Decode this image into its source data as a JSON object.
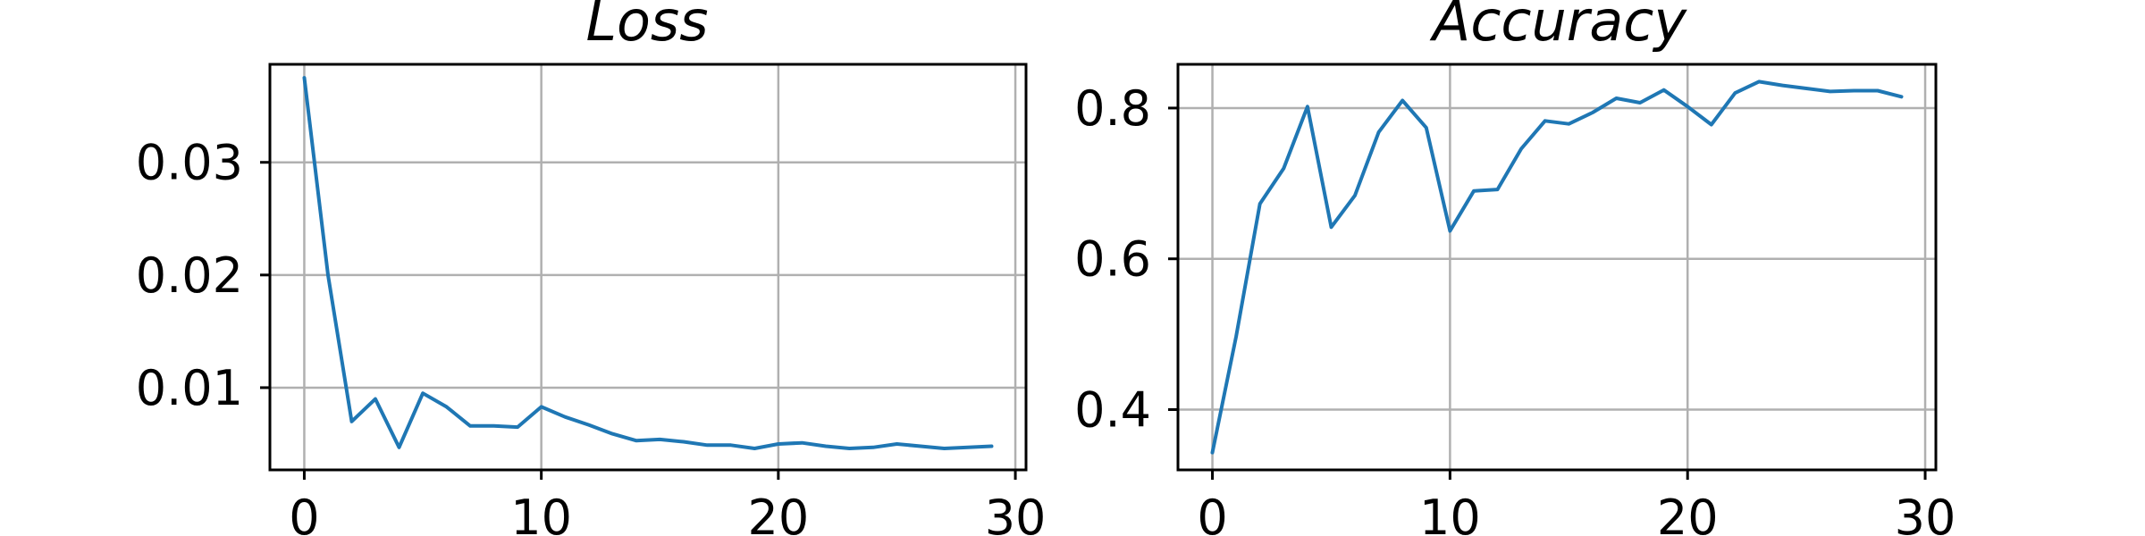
{
  "colors": {
    "series": "#1f77b4",
    "grid": "#b0b0b0",
    "axes": "#000000"
  },
  "chart_data": [
    {
      "type": "line",
      "title": "Loss",
      "xlabel": "",
      "ylabel": "",
      "grid": true,
      "xlim": [
        -1.45,
        30.45
      ],
      "ylim": [
        0.0027,
        0.0387
      ],
      "xticks": [
        0,
        10,
        20,
        30
      ],
      "xtick_labels": [
        "0",
        "10",
        "20",
        "30"
      ],
      "yticks": [
        0.01,
        0.02,
        0.03
      ],
      "ytick_labels": [
        "0.01",
        "0.02",
        "0.03"
      ],
      "series": [
        {
          "x": [
            0,
            1,
            2,
            3,
            4,
            5,
            6,
            7,
            8,
            9,
            10,
            11,
            12,
            13,
            14,
            15,
            16,
            17,
            18,
            19,
            20,
            21,
            22,
            23,
            24,
            25,
            26,
            27,
            28,
            29
          ],
          "values": [
            0.0375,
            0.02,
            0.007,
            0.009,
            0.0047,
            0.0095,
            0.0083,
            0.0066,
            0.0066,
            0.0065,
            0.0083,
            0.0074,
            0.0067,
            0.0059,
            0.0053,
            0.0054,
            0.0052,
            0.0049,
            0.0049,
            0.0046,
            0.005,
            0.0051,
            0.0048,
            0.0046,
            0.0047,
            0.005,
            0.0048,
            0.0046,
            0.0047,
            0.0048
          ]
        }
      ]
    },
    {
      "type": "line",
      "title": "Accuracy",
      "xlabel": "",
      "ylabel": "",
      "grid": true,
      "xlim": [
        -1.45,
        30.45
      ],
      "ylim": [
        0.32,
        0.858
      ],
      "xticks": [
        0,
        10,
        20,
        30
      ],
      "xtick_labels": [
        "0",
        "10",
        "20",
        "30"
      ],
      "yticks": [
        0.4,
        0.6,
        0.8
      ],
      "ytick_labels": [
        "0.4",
        "0.6",
        "0.8"
      ],
      "series": [
        {
          "x": [
            0,
            1,
            2,
            3,
            4,
            5,
            6,
            7,
            8,
            9,
            10,
            11,
            12,
            13,
            14,
            15,
            16,
            17,
            18,
            19,
            20,
            21,
            22,
            23,
            24,
            25,
            26,
            27,
            28,
            29
          ],
          "values": [
            0.343,
            0.497,
            0.673,
            0.72,
            0.802,
            0.642,
            0.684,
            0.768,
            0.81,
            0.774,
            0.637,
            0.69,
            0.692,
            0.746,
            0.783,
            0.779,
            0.794,
            0.813,
            0.807,
            0.824,
            0.802,
            0.778,
            0.82,
            0.835,
            0.83,
            0.826,
            0.822,
            0.823,
            0.823,
            0.815
          ]
        }
      ]
    }
  ]
}
